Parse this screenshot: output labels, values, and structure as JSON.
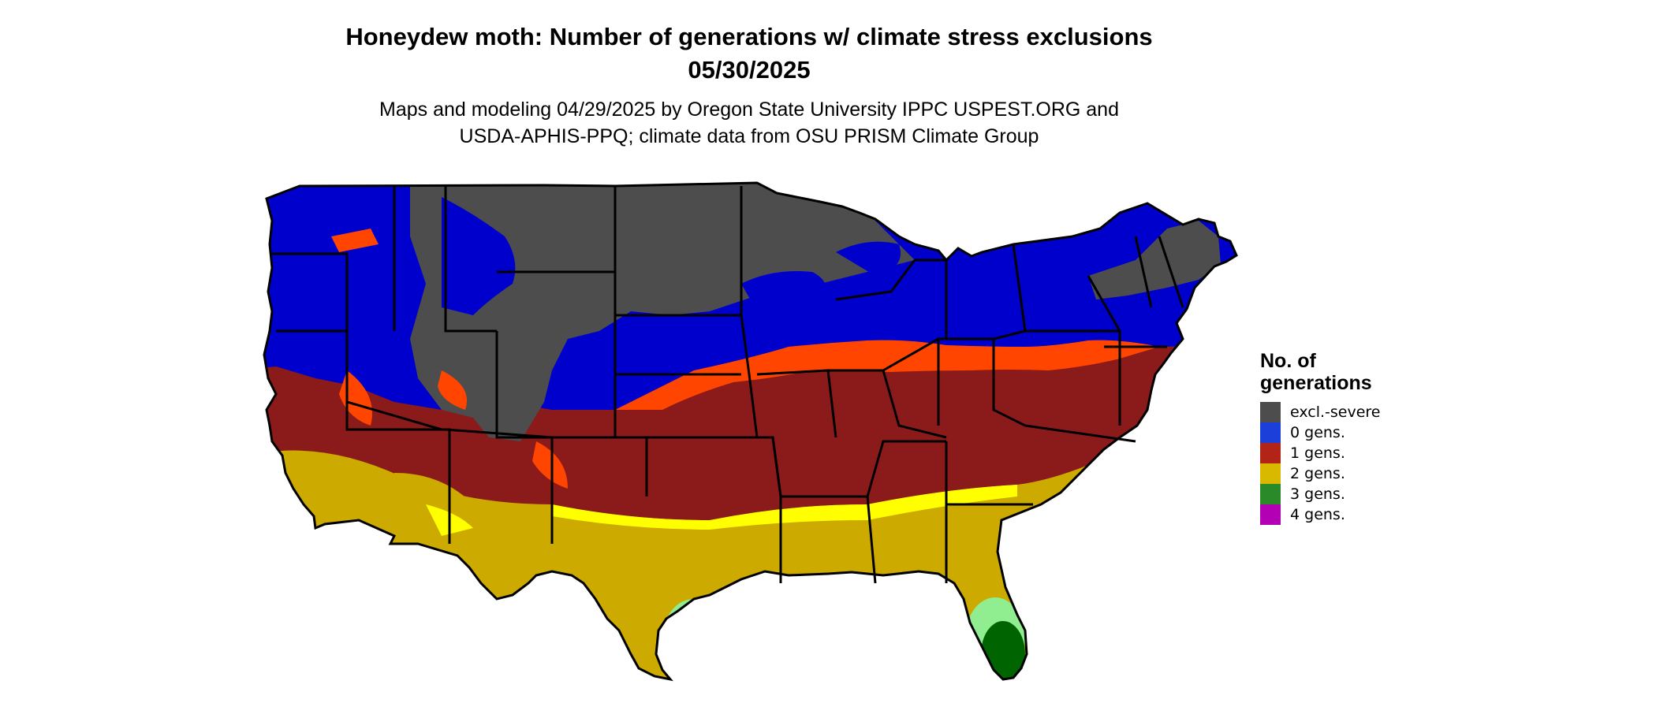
{
  "title_line1": "Honeydew moth: Number of generations w/ climate stress exclusions",
  "title_line2": "05/30/2025",
  "subtitle_line1": "Maps and modeling 04/29/2025 by Oregon State University IPPC USPEST.ORG and",
  "subtitle_line2": "USDA-APHIS-PPQ; climate data from OSU PRISM Climate Group",
  "legend": {
    "title_line1": "No. of",
    "title_line2": "generations",
    "items": [
      {
        "label": "excl.-severe",
        "color": "#4d4d4d"
      },
      {
        "label": "0 gens.",
        "color": "#1b3fd8"
      },
      {
        "label": "1 gens.",
        "color": "#b22318"
      },
      {
        "label": "2 gens.",
        "color": "#d9b800"
      },
      {
        "label": "3 gens.",
        "color": "#2a8a2a"
      },
      {
        "label": "4 gens.",
        "color": "#b400b4"
      }
    ]
  },
  "map_colors": {
    "excluded": "#4d4d4d",
    "zero": "#0000cc",
    "one": "#8b1a1a",
    "one_transition": "#ff4500",
    "two": "#ccaa00",
    "two_edge": "#ffff00",
    "three": "#006400",
    "three_edge": "#90ee90",
    "border": "#000000"
  }
}
